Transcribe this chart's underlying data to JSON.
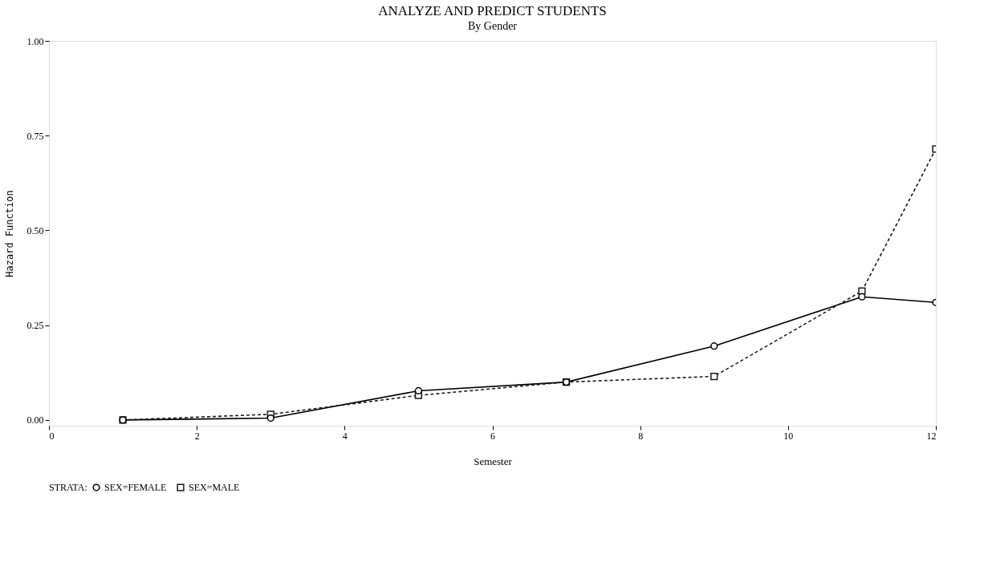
{
  "chart_data": {
    "type": "line",
    "title": "ANALYZE AND PREDICT STUDENTS",
    "subtitle": "By Gender",
    "xlabel": "Semester",
    "ylabel": "Hazard Function",
    "legend_title": "STRATA:",
    "legend": "bottom",
    "grid": false,
    "x": [
      1,
      3,
      5,
      7,
      9,
      11,
      12
    ],
    "series": [
      {
        "name": "SEX=FEMALE",
        "color": "#000000",
        "marker": "circle",
        "line_style": "solid",
        "values": [
          0.0,
          0.005,
          0.077,
          0.1,
          0.195,
          0.325,
          0.31
        ]
      },
      {
        "name": "SEX=MALE",
        "color": "#1a1a1a",
        "marker": "square",
        "line_style": "dashed",
        "values": [
          0.0,
          0.015,
          0.065,
          0.1,
          0.115,
          0.34,
          0.715
        ]
      }
    ],
    "xlim": [
      0,
      12
    ],
    "xticks": [
      0,
      2,
      4,
      6,
      8,
      10,
      12
    ],
    "ylim": [
      -0.015,
      1.0
    ],
    "yticks": [
      {
        "value": 0,
        "label": "0.00"
      },
      {
        "value": 0.25,
        "label": "0.25"
      },
      {
        "value": 0.5,
        "label": "0.50"
      },
      {
        "value": 0.75,
        "label": "0.75"
      },
      {
        "value": 1.0,
        "label": "1.00"
      }
    ]
  }
}
